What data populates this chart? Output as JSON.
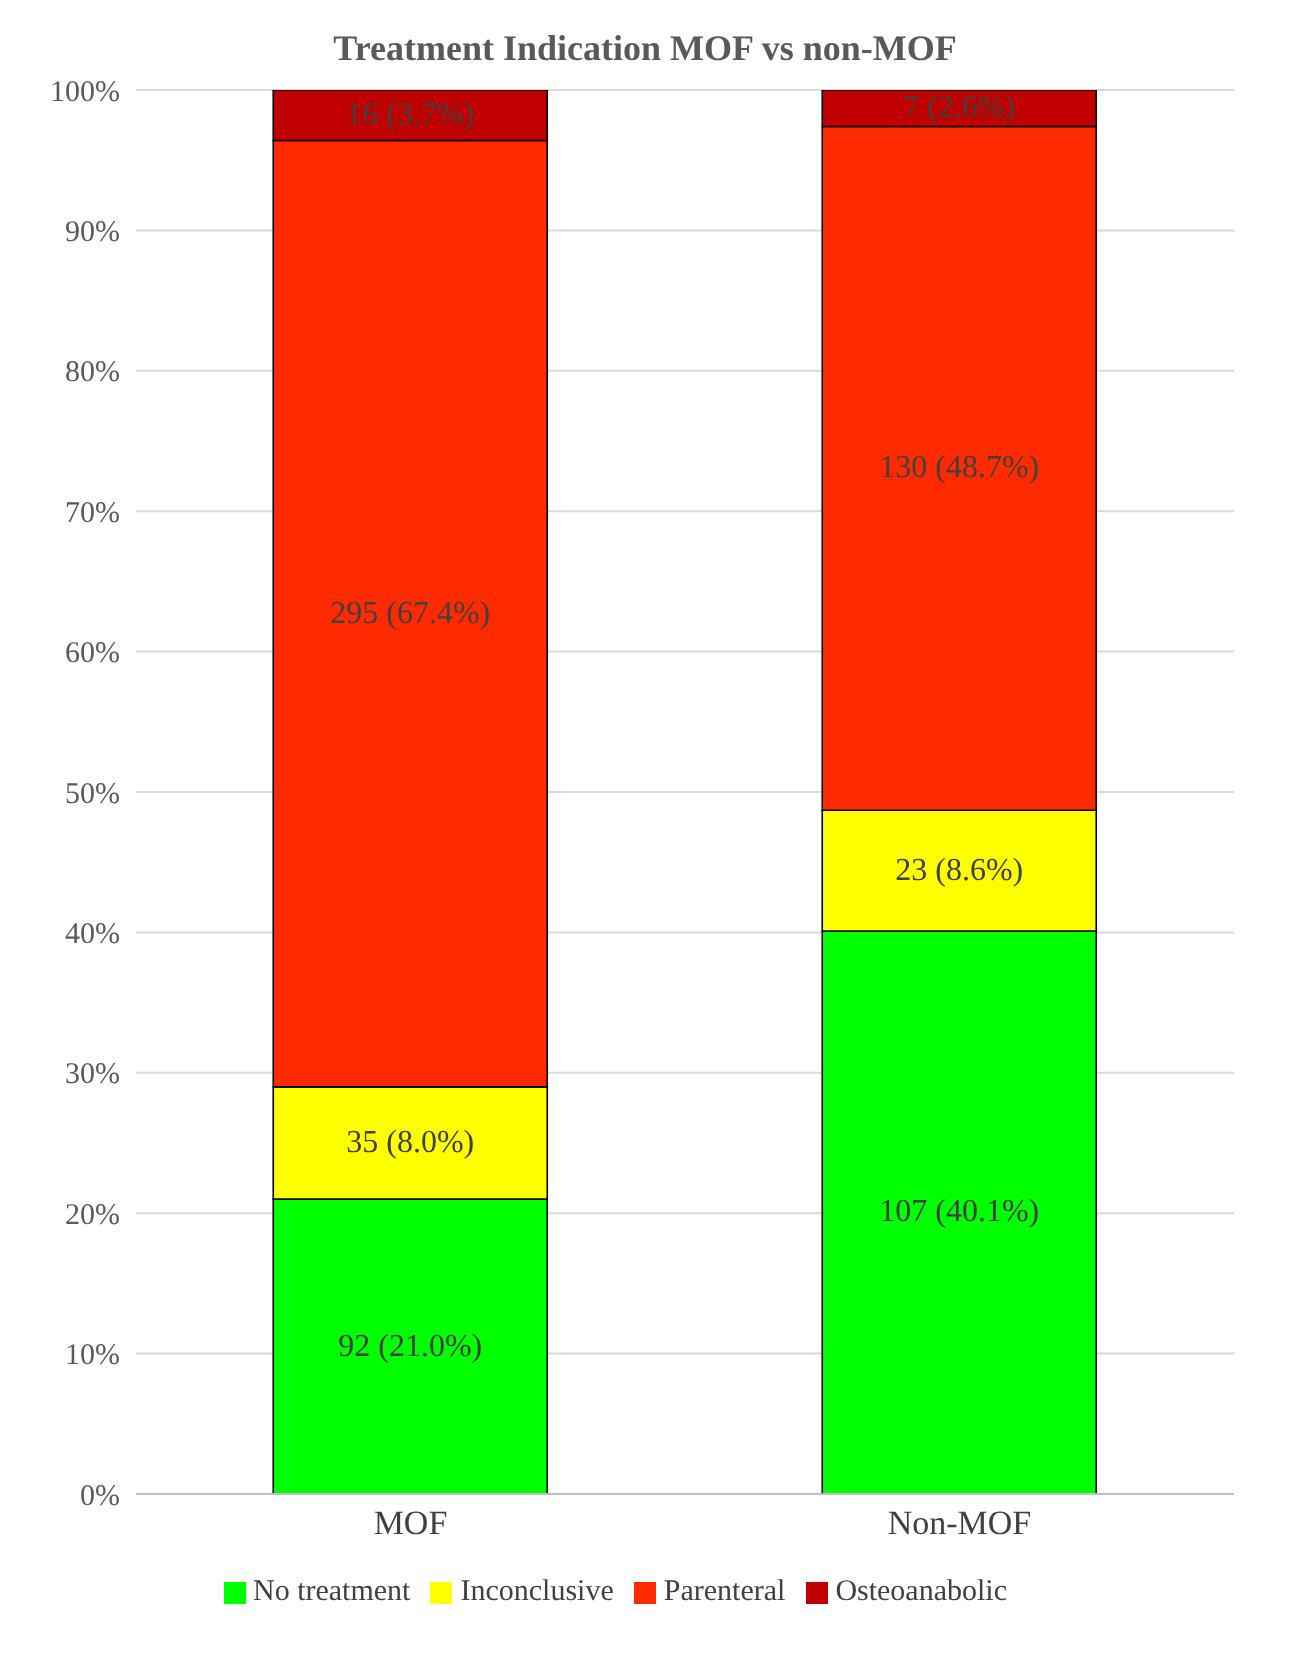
{
  "chart_data": {
    "type": "bar",
    "title": "Treatment Indication MOF vs non-MOF",
    "categories": [
      "MOF",
      "Non-MOF"
    ],
    "stacked": true,
    "series": [
      {
        "name": "No treatment",
        "color": "#00ff00",
        "values": [
          21.0,
          40.1
        ],
        "value_labels": [
          "92 (21.0%)",
          "107 (40.1%)"
        ]
      },
      {
        "name": "Inconclusive",
        "color": "#ffff00",
        "values": [
          8.0,
          8.6
        ],
        "value_labels": [
          "35 (8.0%)",
          "23 (8.6%)"
        ]
      },
      {
        "name": "Parenteral",
        "color": "#ff2a00",
        "values": [
          67.4,
          48.7
        ],
        "value_labels": [
          "295 (67.4%)",
          "130 (48.7%)"
        ]
      },
      {
        "name": "Osteoanabolic",
        "color": "#c00000",
        "values": [
          3.7,
          2.6
        ],
        "value_labels": [
          "16 (3.7%)",
          "7 (2.6%)"
        ]
      }
    ],
    "ylim": [
      0,
      100
    ],
    "yticks": [
      {
        "value": 0,
        "label": "0%"
      },
      {
        "value": 10,
        "label": "10%"
      },
      {
        "value": 20,
        "label": "20%"
      },
      {
        "value": 30,
        "label": "30%"
      },
      {
        "value": 40,
        "label": "40%"
      },
      {
        "value": 50,
        "label": "50%"
      },
      {
        "value": 60,
        "label": "60%"
      },
      {
        "value": 70,
        "label": "70%"
      },
      {
        "value": 80,
        "label": "80%"
      },
      {
        "value": 90,
        "label": "90%"
      },
      {
        "value": 100,
        "label": "100%"
      }
    ],
    "grid": "y",
    "legend": "bottom"
  }
}
